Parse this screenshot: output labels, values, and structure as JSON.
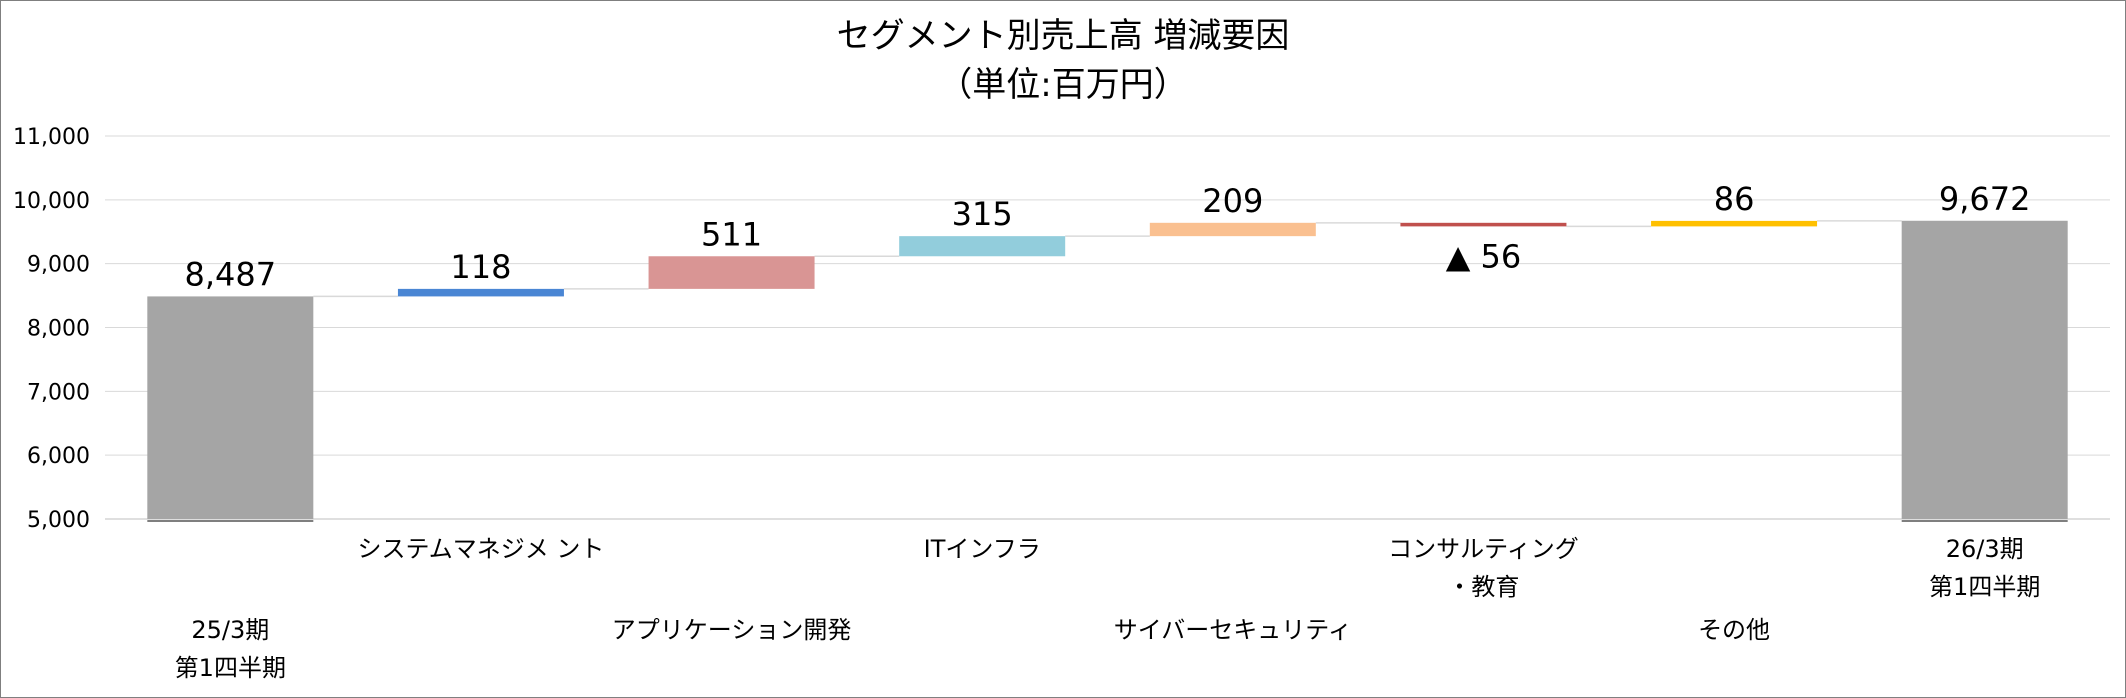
{
  "chart_data": {
    "type": "bar",
    "subtype": "waterfall",
    "title": "セグメント別売上高 増減要因",
    "subtitle": "（単位:百万円）",
    "ylim": [
      5000,
      11000
    ],
    "y_ticks": [
      "11,000",
      "10,000",
      "9,000",
      "8,000",
      "7,000",
      "6,000",
      "5,000"
    ],
    "grid": true,
    "legend": "none",
    "categories": [
      [
        "25/3期",
        "第1四半期"
      ],
      [
        "システムマネジメ ント"
      ],
      [
        "アプリケーション開発"
      ],
      [
        "ITインフラ"
      ],
      [
        "サイバーセキュリティ"
      ],
      [
        "コンサルティング",
        "・教育"
      ],
      [
        "その他"
      ],
      [
        "26/3期",
        "第1四半期"
      ]
    ],
    "steps": [
      {
        "kind": "total",
        "value": 8487,
        "label": "8,487",
        "color": "#a5a5a5"
      },
      {
        "kind": "delta",
        "value": 118,
        "label": "118",
        "color": "#4a86d4"
      },
      {
        "kind": "delta",
        "value": 511,
        "label": "511",
        "color": "#d99594"
      },
      {
        "kind": "delta",
        "value": 315,
        "label": "315",
        "color": "#92cddc"
      },
      {
        "kind": "delta",
        "value": 209,
        "label": "209",
        "color": "#fac090"
      },
      {
        "kind": "delta",
        "value": -56,
        "label": "▲ 56",
        "color": "#c0504d"
      },
      {
        "kind": "delta",
        "value": 86,
        "label": "86",
        "color": "#ffc000"
      },
      {
        "kind": "total",
        "value": 9672,
        "label": "9,672",
        "color": "#a5a5a5"
      }
    ]
  }
}
